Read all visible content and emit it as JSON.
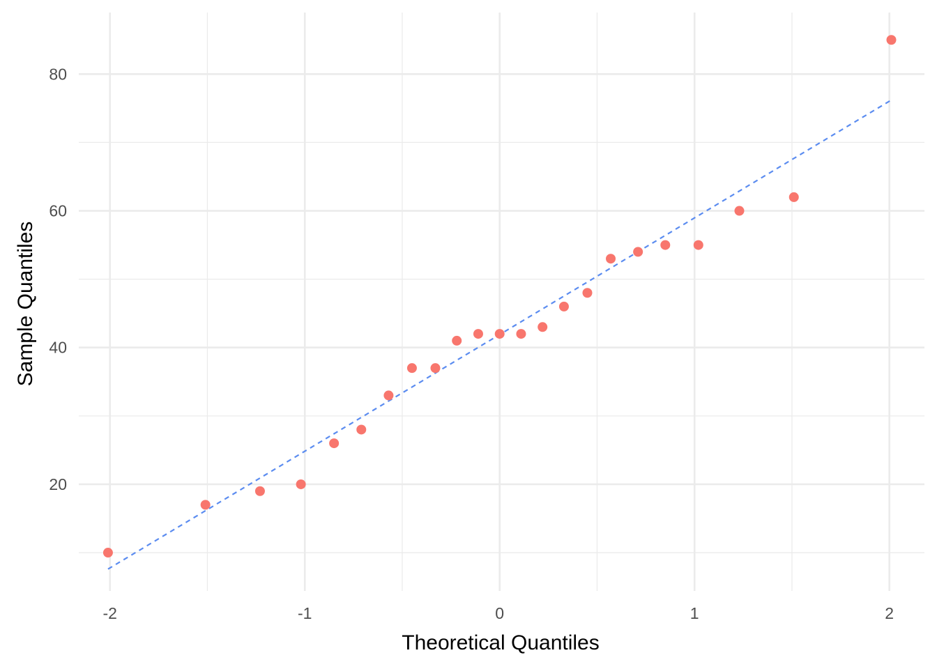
{
  "chart_data": {
    "type": "scatter",
    "title": "",
    "xlabel": "Theoretical Quantiles",
    "ylabel": "Sample Quantiles",
    "xlim": [
      -2.16,
      2.18
    ],
    "ylim": [
      4.4,
      89
    ],
    "x_ticks": [
      -2,
      -1,
      0,
      1,
      2
    ],
    "x_tick_labels": [
      "-2",
      "-1",
      "0",
      "1",
      "2"
    ],
    "y_ticks": [
      20,
      40,
      60,
      80
    ],
    "y_tick_labels": [
      "20",
      "40",
      "60",
      "80"
    ],
    "grid": true,
    "point_color": "#f8766d",
    "line_color": "#5b8cf0",
    "points": [
      {
        "x": -2.01,
        "y": 10
      },
      {
        "x": -1.51,
        "y": 17
      },
      {
        "x": -1.23,
        "y": 19
      },
      {
        "x": -1.02,
        "y": 20
      },
      {
        "x": -0.85,
        "y": 26
      },
      {
        "x": -0.71,
        "y": 28
      },
      {
        "x": -0.57,
        "y": 33
      },
      {
        "x": -0.45,
        "y": 37
      },
      {
        "x": -0.33,
        "y": 37
      },
      {
        "x": -0.22,
        "y": 41
      },
      {
        "x": -0.11,
        "y": 42
      },
      {
        "x": 0.0,
        "y": 42
      },
      {
        "x": 0.11,
        "y": 42
      },
      {
        "x": 0.22,
        "y": 43
      },
      {
        "x": 0.33,
        "y": 46
      },
      {
        "x": 0.45,
        "y": 48
      },
      {
        "x": 0.57,
        "y": 53
      },
      {
        "x": 0.71,
        "y": 54
      },
      {
        "x": 0.85,
        "y": 55
      },
      {
        "x": 1.02,
        "y": 55
      },
      {
        "x": 1.23,
        "y": 60
      },
      {
        "x": 1.51,
        "y": 62
      },
      {
        "x": 2.01,
        "y": 85
      }
    ],
    "reference_line": {
      "x": [
        -2.01,
        2.01
      ],
      "y": [
        7.6,
        76.2
      ],
      "style": "dashed"
    }
  }
}
